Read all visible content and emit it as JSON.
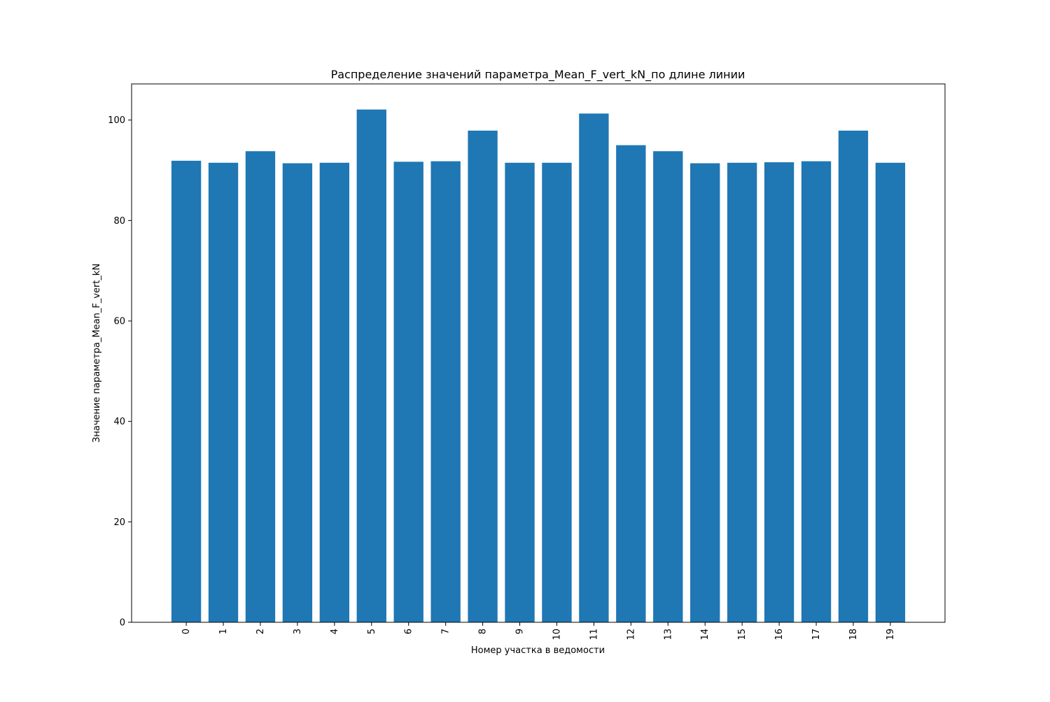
{
  "chart_data": {
    "type": "bar",
    "title": "Распределение значений параметра_Mean_F_vert_kN_по длине линии",
    "xlabel": "Номер участка в ведомости",
    "ylabel": "Значение параметра_Mean_F_vert_kN",
    "categories": [
      "0",
      "1",
      "2",
      "3",
      "4",
      "5",
      "6",
      "7",
      "8",
      "9",
      "10",
      "11",
      "12",
      "13",
      "14",
      "15",
      "16",
      "17",
      "18",
      "19"
    ],
    "values": [
      91.9,
      91.5,
      93.8,
      91.4,
      91.5,
      102.1,
      91.7,
      91.8,
      97.9,
      91.5,
      91.5,
      101.3,
      95.0,
      93.8,
      91.4,
      91.5,
      91.6,
      91.8,
      97.9,
      91.5
    ],
    "ylim": [
      0,
      107.2
    ],
    "yticks": [
      0,
      20,
      40,
      60,
      80,
      100
    ],
    "bar_color": "#1f77b4",
    "grid": false,
    "legend": "none"
  }
}
